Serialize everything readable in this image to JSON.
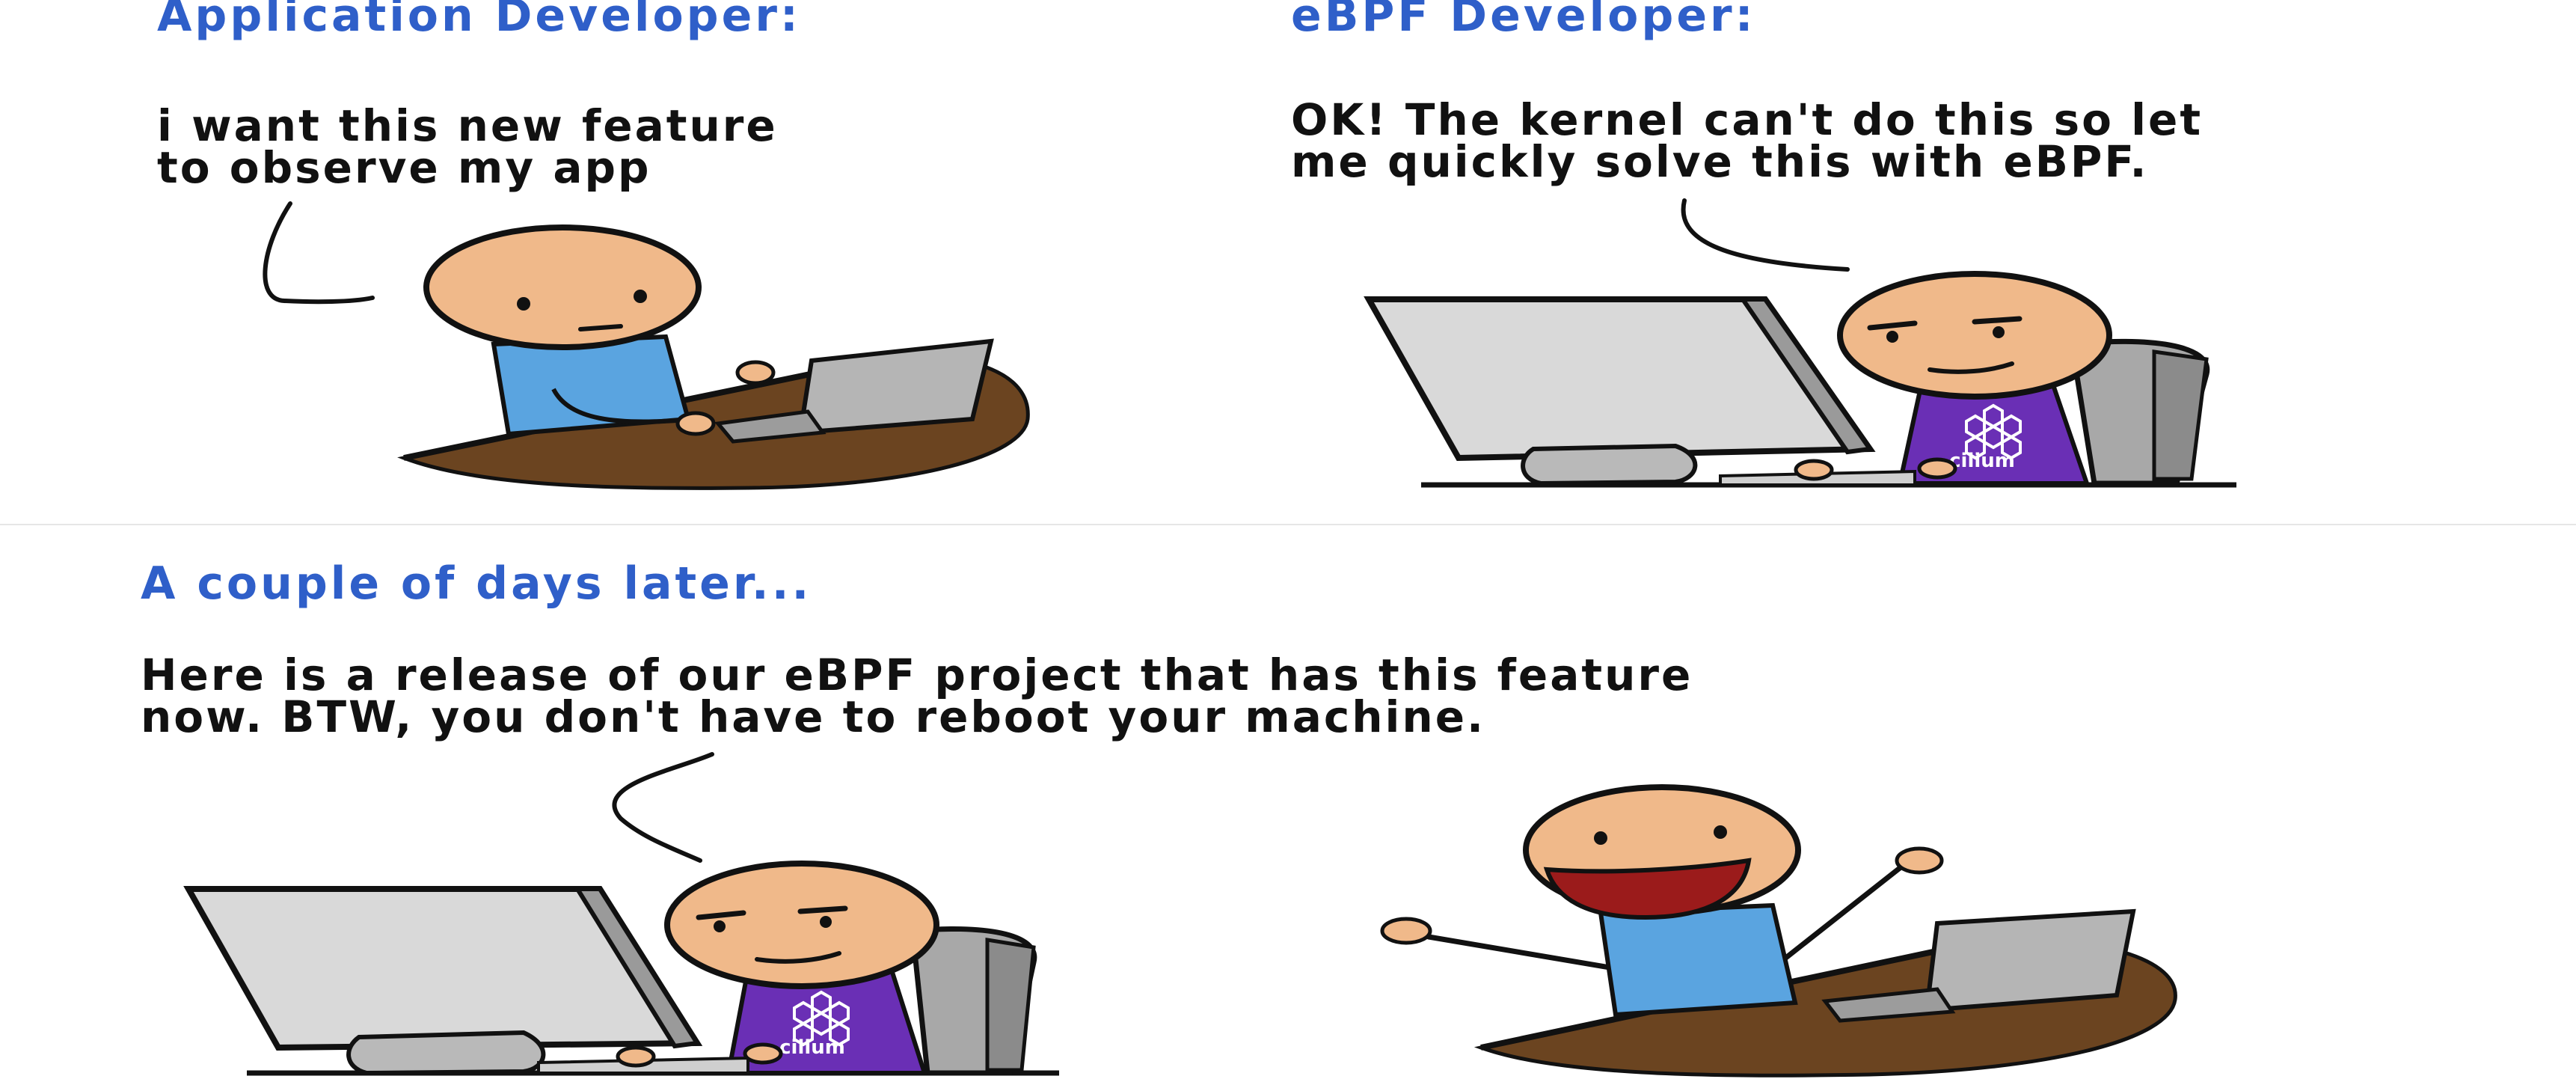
{
  "panels": {
    "app_dev": {
      "heading": "Application Developer:",
      "speech": [
        "i want this new feature",
        "to observe my app"
      ]
    },
    "ebpf_dev": {
      "heading": "eBPF Developer:",
      "speech": [
        "OK! The kernel can't do this so let",
        "me quickly solve this with eBPF."
      ],
      "shirt_logo": "cilium"
    },
    "later": {
      "heading": "A couple of days later...",
      "speech": [
        "Here is a release of our eBPF project that has this feature",
        "now. BTW, you don't have to reboot your machine."
      ],
      "shirt_logo": "cilium"
    }
  },
  "colors": {
    "heading": "#2f5fc9",
    "skin": "#f0b98a",
    "shirt_blue": "#5aa4e0",
    "shirt_purple": "#6a2fb5",
    "desk": "#6b4420",
    "screen": "#d9d9d9",
    "mouth": "#9b1b1b"
  }
}
